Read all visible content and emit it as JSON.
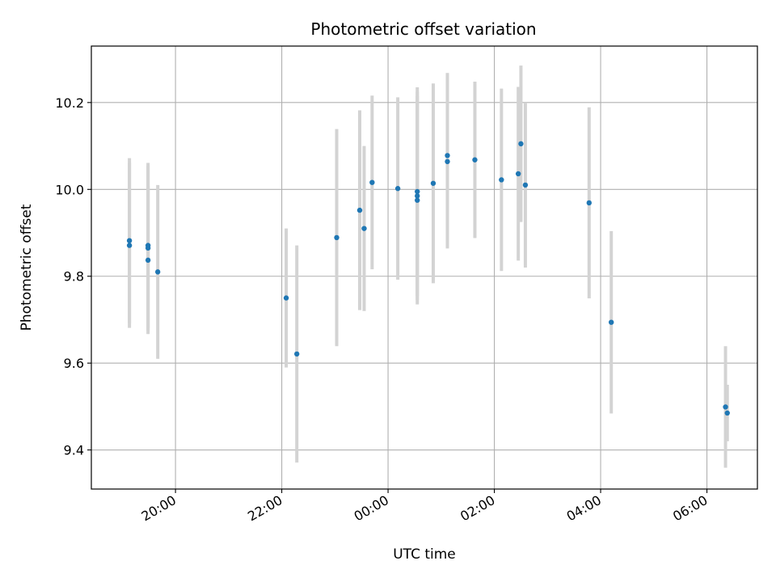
{
  "chart_data": {
    "type": "scatter",
    "title": "Photometric offset variation",
    "xlabel": "UTC time",
    "ylabel": "Photometric offset",
    "grid": true,
    "x_unit": "UTC time (HH:MM)",
    "xlim": [
      "18:25",
      "06:57"
    ],
    "ylim": [
      9.31,
      10.33
    ],
    "x_ticks": [
      "20:00",
      "22:00",
      "00:00",
      "02:00",
      "04:00",
      "06:00"
    ],
    "y_ticks": [
      "9.4",
      "9.6",
      "9.8",
      "10.0",
      "10.2"
    ],
    "colors": {
      "points": "#1f77b4",
      "errorbars": "#d3d3d3",
      "grid": "#b0b0b0"
    },
    "points": [
      {
        "x": "19:08",
        "y": 9.882,
        "yerr": 0.19
      },
      {
        "x": "19:08",
        "y": 9.871,
        "yerr": 0.19
      },
      {
        "x": "19:29",
        "y": 9.871,
        "yerr": 0.19
      },
      {
        "x": "19:29",
        "y": 9.865,
        "yerr": 0.19
      },
      {
        "x": "19:29",
        "y": 9.837,
        "yerr": 0.17
      },
      {
        "x": "19:40",
        "y": 9.81,
        "yerr": 0.2
      },
      {
        "x": "22:05",
        "y": 9.75,
        "yerr": 0.16
      },
      {
        "x": "22:17",
        "y": 9.621,
        "yerr": 0.25
      },
      {
        "x": "23:02",
        "y": 9.889,
        "yerr": 0.25
      },
      {
        "x": "23:28",
        "y": 9.952,
        "yerr": 0.23
      },
      {
        "x": "23:33",
        "y": 9.91,
        "yerr": 0.19
      },
      {
        "x": "23:42",
        "y": 10.016,
        "yerr": 0.2
      },
      {
        "x": "00:11",
        "y": 10.002,
        "yerr": 0.21
      },
      {
        "x": "00:33",
        "y": 9.995,
        "yerr": 0.24
      },
      {
        "x": "00:33",
        "y": 9.985,
        "yerr": 0.24
      },
      {
        "x": "00:33",
        "y": 9.975,
        "yerr": 0.24
      },
      {
        "x": "00:51",
        "y": 10.014,
        "yerr": 0.23
      },
      {
        "x": "01:07",
        "y": 10.078,
        "yerr": 0.19
      },
      {
        "x": "01:07",
        "y": 10.064,
        "yerr": 0.2
      },
      {
        "x": "01:38",
        "y": 10.068,
        "yerr": 0.18
      },
      {
        "x": "02:08",
        "y": 10.022,
        "yerr": 0.21
      },
      {
        "x": "02:27",
        "y": 10.036,
        "yerr": 0.2
      },
      {
        "x": "02:30",
        "y": 10.105,
        "yerr": 0.18
      },
      {
        "x": "02:35",
        "y": 10.01,
        "yerr": 0.19
      },
      {
        "x": "03:47",
        "y": 9.969,
        "yerr": 0.22
      },
      {
        "x": "04:12",
        "y": 9.694,
        "yerr": 0.21
      },
      {
        "x": "06:21",
        "y": 9.499,
        "yerr": 0.14
      },
      {
        "x": "06:23",
        "y": 9.485,
        "yerr": 0.065
      }
    ]
  }
}
